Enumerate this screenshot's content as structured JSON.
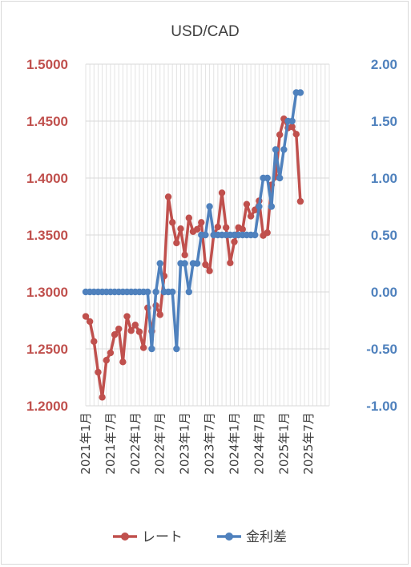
{
  "chart_data": {
    "type": "line",
    "title": "USD/CAD",
    "x": [
      "2021-01",
      "2021-02",
      "2021-03",
      "2021-04",
      "2021-05",
      "2021-06",
      "2021-07",
      "2021-08",
      "2021-09",
      "2021-10",
      "2021-11",
      "2021-12",
      "2022-01",
      "2022-02",
      "2022-03",
      "2022-04",
      "2022-05",
      "2022-06",
      "2022-07",
      "2022-08",
      "2022-09",
      "2022-10",
      "2022-11",
      "2022-12",
      "2023-01",
      "2023-02",
      "2023-03",
      "2023-04",
      "2023-05",
      "2023-06",
      "2023-07",
      "2023-08",
      "2023-09",
      "2023-10",
      "2023-11",
      "2023-12",
      "2024-01",
      "2024-02",
      "2024-03",
      "2024-04",
      "2024-05",
      "2024-06",
      "2024-07",
      "2024-08",
      "2024-09",
      "2024-10",
      "2024-11",
      "2024-12",
      "2025-01",
      "2025-02",
      "2025-03",
      "2025-04",
      "2025-05"
    ],
    "x_tick_labels": [
      "2021年1月",
      "2021年7月",
      "2022年1月",
      "2022年7月",
      "2023年1月",
      "2023年7月",
      "2024年1月",
      "2024年7月",
      "2025年1月",
      "2025年7月"
    ],
    "x_range": [
      "2021-01",
      "2025-12"
    ],
    "grid": true,
    "legend_position": "bottom",
    "axes": {
      "left": {
        "ylim": [
          1.2,
          1.5
        ],
        "tick_labels": [
          "1.2000",
          "1.2500",
          "1.3000",
          "1.3500",
          "1.4000",
          "1.4500",
          "1.5000"
        ],
        "color": "#c0504d"
      },
      "right": {
        "ylim": [
          -1.0,
          2.0
        ],
        "tick_labels": [
          "-1.00",
          "-0.50",
          "0.00",
          "0.50",
          "1.00",
          "1.50",
          "2.00"
        ],
        "color": "#4f81bd"
      }
    },
    "series": [
      {
        "name": "レート",
        "axis": "left",
        "color": "#c0504d",
        "values": [
          1.2785,
          1.274,
          1.2565,
          1.2295,
          1.2075,
          1.24,
          1.2465,
          1.2625,
          1.2675,
          1.2385,
          1.2785,
          1.266,
          1.271,
          1.265,
          1.251,
          1.286,
          1.2655,
          1.288,
          1.28,
          1.314,
          1.3835,
          1.361,
          1.343,
          1.3555,
          1.3325,
          1.365,
          1.353,
          1.355,
          1.361,
          1.324,
          1.3185,
          1.35,
          1.357,
          1.387,
          1.3565,
          1.3255,
          1.344,
          1.3565,
          1.355,
          1.377,
          1.3665,
          1.372,
          1.38,
          1.3495,
          1.352,
          1.394,
          1.401,
          1.438,
          1.452,
          1.444,
          1.445,
          1.4385,
          1.3795
        ]
      },
      {
        "name": "金利差",
        "axis": "right",
        "color": "#4f81bd",
        "values": [
          0,
          0,
          0,
          0,
          0,
          0,
          0,
          0,
          0,
          0,
          0,
          0,
          0,
          0,
          0,
          0,
          -0.5,
          0,
          0.25,
          0,
          0,
          0,
          -0.5,
          0.25,
          0.25,
          0,
          0.25,
          0.25,
          0.5,
          0.5,
          0.75,
          0.5,
          0.5,
          0.5,
          0.5,
          0.5,
          0.5,
          0.5,
          0.5,
          0.5,
          0.5,
          0.5,
          0.75,
          1.0,
          1.0,
          0.75,
          1.25,
          1.0,
          1.25,
          1.5,
          1.5,
          1.75,
          1.75
        ]
      }
    ]
  }
}
